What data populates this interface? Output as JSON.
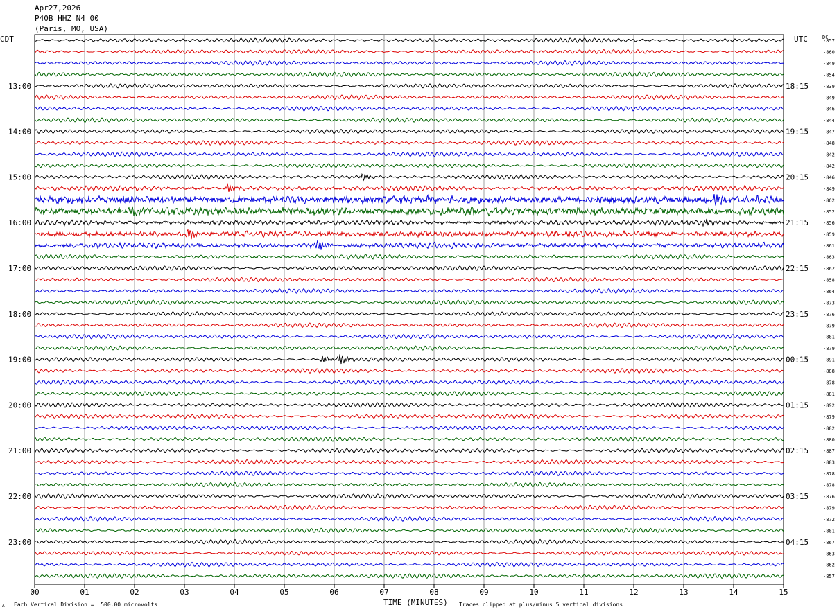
{
  "header": {
    "date": "Apr27,2026",
    "station": "P40B HHZ N4 00",
    "location": "(Paris, MO, USA)"
  },
  "left_tz": "CDT",
  "right_tz": "UTC",
  "dc_label": "DC",
  "footer": {
    "scale_note": "Each Vertical Division =  500.00 microvolts",
    "clip_note": "Traces clipped at plus/minus 5 vertical divisions",
    "corner_mark": "A"
  },
  "chart_data": {
    "type": "line",
    "title": "",
    "xlabel": "TIME (MINUTES)",
    "ylabel": "",
    "xlim": [
      0,
      15
    ],
    "x_ticks": [
      "00",
      "01",
      "02",
      "03",
      "04",
      "05",
      "06",
      "07",
      "08",
      "09",
      "10",
      "11",
      "12",
      "13",
      "14",
      "15"
    ],
    "trace_colors": [
      "#000000",
      "#dd0000",
      "#0000dd",
      "#006400"
    ],
    "traces_per_hour": 4,
    "start_hour_local": 12,
    "left_hour_labels": [
      "13:00",
      "14:00",
      "15:00",
      "16:00",
      "17:00",
      "18:00",
      "19:00",
      "20:00",
      "21:00",
      "22:00",
      "23:00"
    ],
    "right_hour_labels": [
      "18:15",
      "19:15",
      "20:15",
      "21:15",
      "22:15",
      "23:15",
      "00:15",
      "01:15",
      "02:15",
      "03:15",
      "04:15"
    ],
    "dc_offsets": [
      -857,
      -860,
      -849,
      -854,
      -839,
      -849,
      -846,
      -844,
      -847,
      -848,
      -842,
      -842,
      -846,
      -849,
      -862,
      -852,
      -856,
      -859,
      -861,
      -863,
      -862,
      -858,
      -864,
      -873,
      -876,
      -879,
      -881,
      -879,
      -891,
      -888,
      -878,
      -881,
      -892,
      -879,
      -882,
      -880,
      -887,
      -883,
      -878,
      -878,
      -876,
      -879,
      -872,
      -881,
      -867,
      -863,
      -862,
      -857
    ],
    "trace_activity": [
      1,
      1,
      1,
      1,
      1,
      1,
      1,
      1,
      1,
      1,
      1,
      1,
      1.1,
      1.3,
      2.2,
      2.2,
      1.4,
      1.7,
      1.6,
      1.2,
      1,
      1,
      1,
      1,
      1,
      1,
      1,
      1,
      1,
      1,
      1,
      1,
      1.1,
      1,
      1,
      1,
      1,
      1,
      1,
      1,
      1,
      1,
      1,
      1,
      1,
      1,
      1,
      1
    ],
    "events": [
      {
        "trace": 12,
        "minute": 6.55,
        "amp": 6
      },
      {
        "trace": 13,
        "minute": 3.85,
        "amp": 7
      },
      {
        "trace": 14,
        "minute": 13.6,
        "amp": 16
      },
      {
        "trace": 15,
        "minute": 1.95,
        "amp": 7
      },
      {
        "trace": 16,
        "minute": 13.4,
        "amp": 5
      },
      {
        "trace": 17,
        "minute": 3.05,
        "amp": 10
      },
      {
        "trace": 18,
        "minute": 5.65,
        "amp": 8
      },
      {
        "trace": 28,
        "minute": 5.75,
        "amp": 6
      },
      {
        "trace": 28,
        "minute": 6.1,
        "amp": 9
      }
    ]
  }
}
